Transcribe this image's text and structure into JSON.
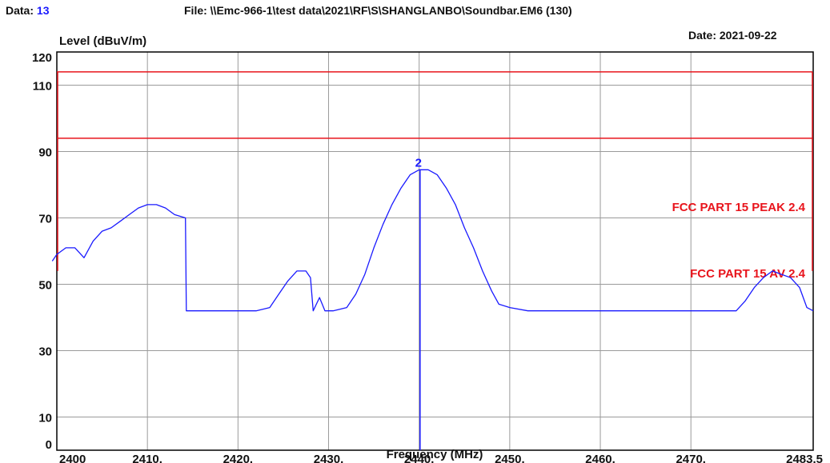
{
  "header": {
    "data_label": "Data:",
    "data_value": "13",
    "file_text": "File: \\\\Emc-966-1\\test data\\2021\\RF\\S\\SHANGLANBO\\Soundbar.EM6  (130)",
    "date_text": "Date: 2021-09-22"
  },
  "colors": {
    "trace": "#1a1aff",
    "limits": "#e8141c",
    "grid": "#9a9a9a",
    "data_value": "#1a1aff"
  },
  "chart_data": {
    "type": "line",
    "xlabel": "Frequency (MHz)",
    "ylabel": "Level (dBuV/m)",
    "xlim": [
      2400,
      2483.5
    ],
    "ylim": [
      0,
      120
    ],
    "x_ticks": [
      {
        "value": 2400,
        "label": "2400"
      },
      {
        "value": 2410,
        "label": "2410."
      },
      {
        "value": 2420,
        "label": "2420."
      },
      {
        "value": 2430,
        "label": "2430."
      },
      {
        "value": 2440,
        "label": "2440."
      },
      {
        "value": 2450,
        "label": "2450."
      },
      {
        "value": 2460,
        "label": "2460."
      },
      {
        "value": 2470,
        "label": "2470."
      },
      {
        "value": 2483.5,
        "label": "2483.5"
      }
    ],
    "y_ticks": [
      {
        "value": 120,
        "label": "120"
      },
      {
        "value": 110,
        "label": "110"
      },
      {
        "value": 90,
        "label": "90"
      },
      {
        "value": 70,
        "label": "70"
      },
      {
        "value": 50,
        "label": "50"
      },
      {
        "value": 30,
        "label": "30"
      },
      {
        "value": 10,
        "label": "10"
      },
      {
        "value": 0,
        "label": "0"
      }
    ],
    "grid": true,
    "limits": [
      {
        "name": "FCC PART 15 PEAK 2.4",
        "value": 114
      },
      {
        "name": "FCC PART 15 AV 2.4",
        "value": 94
      }
    ],
    "marker": {
      "label": "2",
      "x": 2440.1,
      "y": 84.5
    },
    "series": [
      {
        "x": [
          2399.5,
          2400,
          2401,
          2402,
          2403,
          2404,
          2405,
          2406,
          2407,
          2408,
          2409,
          2410,
          2411,
          2412,
          2413,
          2414.2,
          2414.3,
          2415,
          2416,
          2418,
          2420,
          2422,
          2423.5,
          2424.5,
          2425.5,
          2426.5,
          2427.5,
          2428,
          2428.3,
          2429,
          2429.6,
          2430.5,
          2432,
          2433,
          2434,
          2435,
          2436,
          2437,
          2438,
          2439,
          2440,
          2441,
          2442,
          2443,
          2444,
          2445,
          2446,
          2447,
          2448,
          2448.8,
          2450,
          2452,
          2455,
          2458,
          2461,
          2464,
          2467,
          2470,
          2473,
          2475,
          2476,
          2477,
          2478,
          2479,
          2480,
          2481,
          2482,
          2482.8,
          2483.5
        ],
        "values": [
          57,
          59,
          61,
          61,
          58,
          63,
          66,
          67,
          69,
          71,
          73,
          74,
          74,
          73,
          71,
          70,
          42,
          42,
          42,
          42,
          42,
          42,
          43,
          47,
          51,
          54,
          54,
          52,
          42,
          46,
          42,
          42,
          43,
          47,
          53,
          61,
          68,
          74,
          79,
          83,
          84.5,
          84.5,
          83,
          79,
          74,
          67,
          61,
          54,
          48,
          44,
          43,
          42,
          42,
          42,
          42,
          42,
          42,
          42,
          42,
          42,
          45,
          49,
          52,
          54,
          53,
          52,
          49,
          43,
          42
        ]
      }
    ]
  }
}
